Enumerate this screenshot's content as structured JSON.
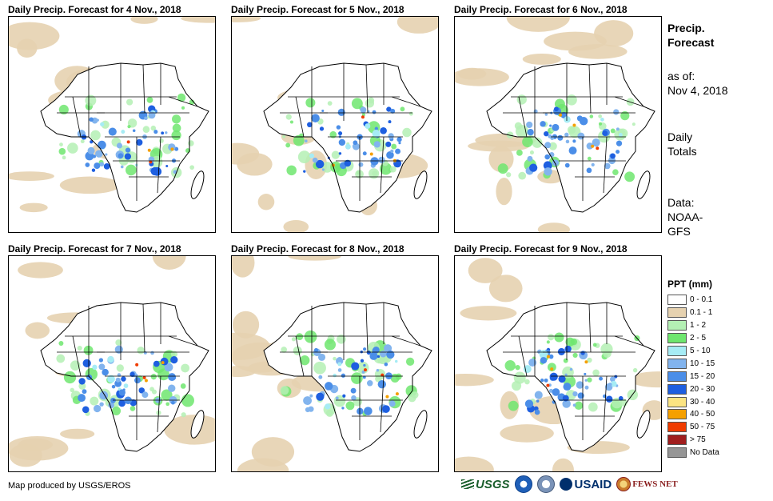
{
  "panels": [
    {
      "title": "Daily Precip. Forecast for 4 Nov., 2018"
    },
    {
      "title": "Daily Precip. Forecast for 5 Nov., 2018"
    },
    {
      "title": "Daily Precip. Forecast for 6 Nov., 2018"
    },
    {
      "title": "Daily Precip. Forecast for 7 Nov., 2018"
    },
    {
      "title": "Daily Precip. Forecast for 8 Nov., 2018"
    },
    {
      "title": "Daily Precip. Forecast for 9 Nov., 2018"
    }
  ],
  "side": {
    "title_line1": "Precip.",
    "title_line2": "Forecast",
    "asof_line1": "as of:",
    "asof_line2": "Nov 4, 2018",
    "totals_line1": "Daily",
    "totals_line2": "Totals",
    "data_line1": "Data:",
    "data_line2": "NOAA-",
    "data_line3": "GFS"
  },
  "legend": {
    "title": "PPT (mm)",
    "items": [
      {
        "label": "0 - 0.1",
        "color": "#ffffff"
      },
      {
        "label": "0.1 - 1",
        "color": "#e6d2b0"
      },
      {
        "label": "1 - 2",
        "color": "#b4f0b4"
      },
      {
        "label": "2 - 5",
        "color": "#6ee66e"
      },
      {
        "label": "5 - 10",
        "color": "#a6ecf5"
      },
      {
        "label": "10 - 15",
        "color": "#82b4ee"
      },
      {
        "label": "15 - 20",
        "color": "#4b8ee8"
      },
      {
        "label": "20 - 30",
        "color": "#1e5fe0"
      },
      {
        "label": "30 - 40",
        "color": "#fbe482"
      },
      {
        "label": "40 - 50",
        "color": "#f5a000"
      },
      {
        "label": "50 - 75",
        "color": "#f03c00"
      },
      {
        "label": "> 75",
        "color": "#a01e1e"
      },
      {
        "label": "No Data",
        "color": "#969696"
      }
    ]
  },
  "footer": {
    "credit": "Map produced by USGS/EROS"
  },
  "logos": {
    "usgs": "USGS",
    "usaid": "USAID",
    "fews": "FEWS NET"
  }
}
